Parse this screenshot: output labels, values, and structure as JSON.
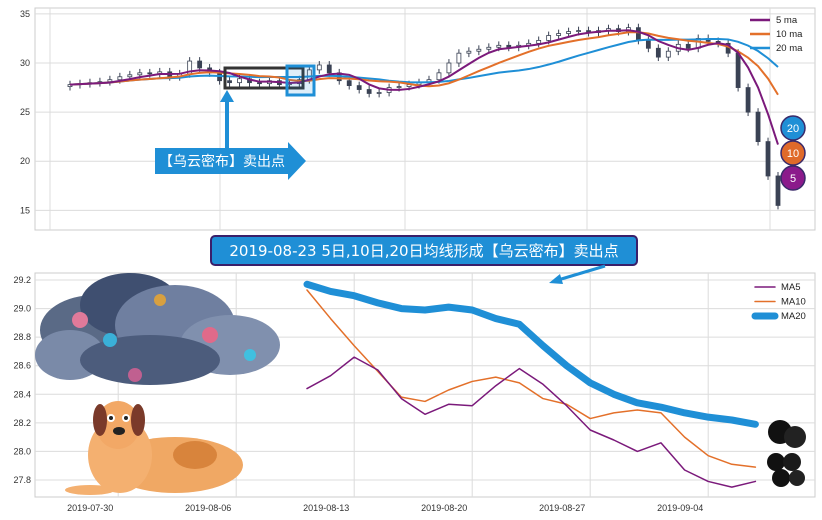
{
  "colors": {
    "ma5": "#7b1a7b",
    "ma10": "#e3702a",
    "ma20": "#1f8fd6",
    "candle": "#3a4254",
    "grid": "#dcdcdc"
  },
  "annotations": {
    "box_label": "【乌云密布】卖出点",
    "banner": "2019-08-23 5日,10日,20日均线形成【乌云密布】卖出点",
    "badges": [
      "20",
      "10",
      "5"
    ],
    "icons": [
      "storm-cloud-image",
      "dog-image",
      "black-cloud-image"
    ]
  },
  "chart_data": [
    {
      "type": "candlestick",
      "legend": [
        "5 ma",
        "10 ma",
        "20 ma"
      ],
      "legend_position": "top-right",
      "grid": true,
      "ylim": [
        13,
        35.6
      ],
      "yticks": [
        15,
        20,
        25,
        30,
        35
      ],
      "close": [
        27.8,
        27.9,
        28.0,
        28.1,
        28.3,
        28.6,
        28.8,
        29.0,
        28.9,
        29.1,
        28.6,
        28.9,
        30.2,
        29.5,
        29.0,
        28.2,
        28.0,
        28.4,
        28.0,
        27.9,
        28.2,
        27.8,
        27.9,
        28.3,
        29.3,
        29.8,
        29.0,
        28.2,
        27.7,
        27.3,
        26.9,
        27.0,
        27.5,
        27.6,
        27.8,
        28.0,
        28.3,
        29.0,
        30.0,
        31.0,
        31.2,
        31.4,
        31.6,
        31.8,
        31.6,
        31.8,
        32.0,
        32.3,
        32.8,
        33.0,
        33.2,
        33.3,
        33.1,
        33.3,
        33.5,
        33.2,
        33.6,
        32.3,
        31.5,
        30.6,
        31.2,
        31.9,
        31.5,
        32.5,
        32.2,
        32.0,
        31.0,
        27.5,
        25.0,
        22.0,
        18.5,
        15.5
      ]
    },
    {
      "type": "line",
      "legend_position": "top-right",
      "grid": true,
      "ylim": [
        27.68,
        29.23
      ],
      "yticks": [
        "27.8",
        "28.0",
        "28.2",
        "28.4",
        "28.6",
        "28.8",
        "29.0",
        "29.2"
      ],
      "x": [
        "2019-08-09",
        "2019-08-12",
        "2019-08-13",
        "2019-08-14",
        "2019-08-15",
        "2019-08-16",
        "2019-08-19",
        "2019-08-20",
        "2019-08-21",
        "2019-08-22",
        "2019-08-23",
        "2019-08-26",
        "2019-08-27",
        "2019-08-28",
        "2019-08-29",
        "2019-08-30",
        "2019-09-03",
        "2019-09-04",
        "2019-09-05",
        "2019-09-06"
      ],
      "xticks": [
        "2019-07-30",
        "2019-08-06",
        "2019-08-13",
        "2019-08-20",
        "2019-08-27",
        "2019-09-04"
      ],
      "series": [
        {
          "name": "MA5",
          "values": [
            28.44,
            28.53,
            28.66,
            28.57,
            28.37,
            28.26,
            28.33,
            28.32,
            28.46,
            28.58,
            28.47,
            28.32,
            28.15,
            28.08,
            28.0,
            28.06,
            27.87,
            27.79,
            27.75,
            27.79
          ]
        },
        {
          "name": "MA10",
          "values": [
            29.13,
            28.93,
            28.74,
            28.56,
            28.38,
            28.35,
            28.43,
            28.49,
            28.52,
            28.48,
            28.37,
            28.33,
            28.23,
            28.27,
            28.29,
            28.27,
            28.1,
            27.97,
            27.91,
            27.89
          ]
        },
        {
          "name": "MA20",
          "values": [
            29.17,
            29.12,
            29.09,
            29.04,
            29.0,
            28.99,
            29.01,
            28.99,
            28.93,
            28.89,
            28.74,
            28.6,
            28.48,
            28.4,
            28.34,
            28.31,
            28.27,
            28.24,
            28.22,
            28.19
          ]
        }
      ]
    }
  ]
}
